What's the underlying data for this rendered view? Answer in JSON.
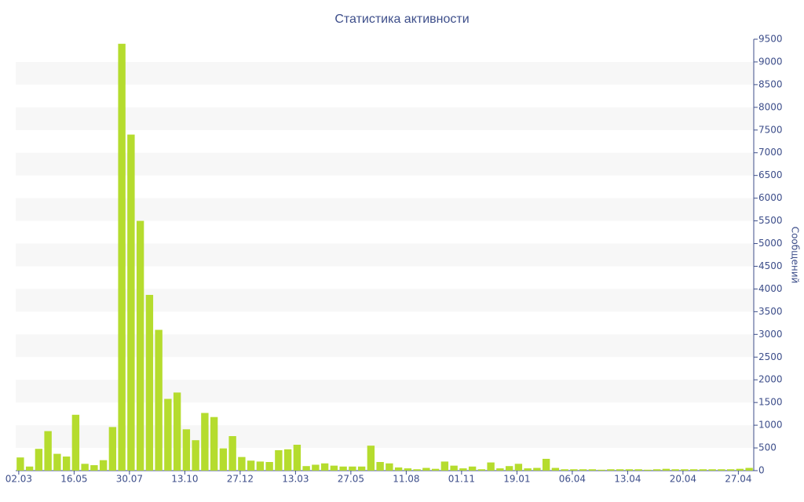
{
  "chart_data": {
    "type": "bar",
    "title": "Статистика активности",
    "y_label": "Сообщений",
    "categories": [
      "02.03",
      null,
      null,
      null,
      null,
      null,
      "16.05",
      null,
      null,
      null,
      null,
      null,
      "30.07",
      null,
      null,
      null,
      null,
      null,
      "13.10",
      null,
      null,
      null,
      null,
      null,
      "27.12",
      null,
      null,
      null,
      null,
      null,
      "13.03",
      null,
      null,
      null,
      null,
      null,
      "27.05",
      null,
      null,
      null,
      null,
      null,
      "11.08",
      null,
      null,
      null,
      null,
      null,
      "01.11",
      null,
      null,
      null,
      null,
      null,
      "19.01",
      null,
      null,
      null,
      null,
      null,
      "06.04",
      null,
      null,
      null,
      null,
      null,
      "13.04",
      null,
      null,
      null,
      null,
      null,
      "20.04",
      null,
      null,
      null,
      null,
      null,
      "27.04",
      null
    ],
    "values": [
      290,
      90,
      480,
      870,
      370,
      310,
      1230,
      150,
      120,
      230,
      960,
      9400,
      7400,
      5500,
      3870,
      3100,
      1580,
      1720,
      910,
      670,
      1270,
      1180,
      490,
      760,
      300,
      220,
      200,
      190,
      450,
      470,
      570,
      100,
      130,
      160,
      110,
      90,
      90,
      90,
      550,
      190,
      160,
      70,
      50,
      30,
      60,
      40,
      200,
      110,
      50,
      90,
      30,
      180,
      50,
      100,
      150,
      50,
      60,
      260,
      60,
      30,
      30,
      30,
      30,
      20,
      30,
      30,
      30,
      30,
      20,
      30,
      40,
      30,
      30,
      30,
      30,
      30,
      30,
      30,
      40,
      60
    ],
    "color": "#b5dc2e",
    "ylim": [
      0,
      9500
    ],
    "yticks": [
      0,
      500,
      1000,
      1500,
      2000,
      2500,
      3000,
      3500,
      4000,
      4500,
      5000,
      5500,
      6000,
      6500,
      7000,
      7500,
      8000,
      8500,
      9000,
      9500
    ],
    "grid": true
  }
}
